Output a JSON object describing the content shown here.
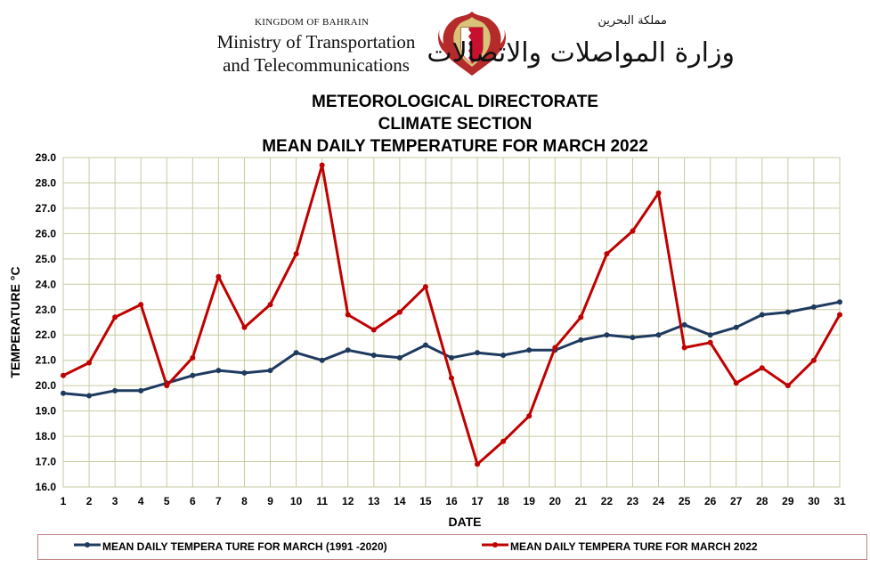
{
  "header": {
    "kingdom": "KINGDOM OF BAHRAIN",
    "ministry_line1": "Ministry of Transportation",
    "ministry_line2": "and Telecommunications",
    "arabic_small": "مملكة البحرين",
    "arabic_big": "وزارة المواصلات والاتصالات",
    "emblem_icon": "bahrain-coat-of-arms-icon"
  },
  "titles": {
    "line1": "METEOROLOGICAL DIRECTORATE",
    "line2": "CLIMATE  SECTION",
    "line3": "MEAN DAILY TEMPERATURE  FOR MARCH 2022"
  },
  "chart_data": {
    "type": "line",
    "xlabel": "DATE",
    "ylabel": "TEMPERATURE °C",
    "ylim": [
      16.0,
      29.0
    ],
    "y_ticks": [
      "16.0",
      "17.0",
      "18.0",
      "19.0",
      "20.0",
      "21.0",
      "22.0",
      "23.0",
      "24.0",
      "25.0",
      "26.0",
      "27.0",
      "28.0",
      "29.0"
    ],
    "x": [
      1,
      2,
      3,
      4,
      5,
      6,
      7,
      8,
      9,
      10,
      11,
      12,
      13,
      14,
      15,
      16,
      17,
      18,
      19,
      20,
      21,
      22,
      23,
      24,
      25,
      26,
      27,
      28,
      29,
      30,
      31
    ],
    "grid": true,
    "legend_position": "bottom",
    "series": [
      {
        "name": "MEAN DAILY TEMPERA TURE FOR MARCH (1991 -2020)",
        "color": "#1f3a5f",
        "values": [
          19.7,
          19.6,
          19.8,
          19.8,
          20.1,
          20.4,
          20.6,
          20.5,
          20.6,
          21.3,
          21.0,
          21.4,
          21.2,
          21.1,
          21.6,
          21.1,
          21.3,
          21.2,
          21.4,
          21.4,
          21.8,
          22.0,
          21.9,
          22.0,
          22.4,
          22.0,
          22.3,
          22.8,
          22.9,
          23.1,
          23.3
        ]
      },
      {
        "name": "MEAN DAILY TEMPERA TURE FOR MARCH 2022",
        "color": "#c00000",
        "values": [
          20.4,
          20.9,
          22.7,
          23.2,
          20.0,
          21.1,
          24.3,
          22.3,
          23.2,
          25.2,
          28.7,
          22.8,
          22.2,
          22.9,
          23.9,
          20.3,
          16.9,
          17.8,
          18.8,
          21.5,
          22.7,
          25.2,
          26.1,
          27.6,
          21.5,
          21.7,
          20.1,
          20.7,
          20.0,
          21.0,
          22.8
        ]
      }
    ]
  }
}
